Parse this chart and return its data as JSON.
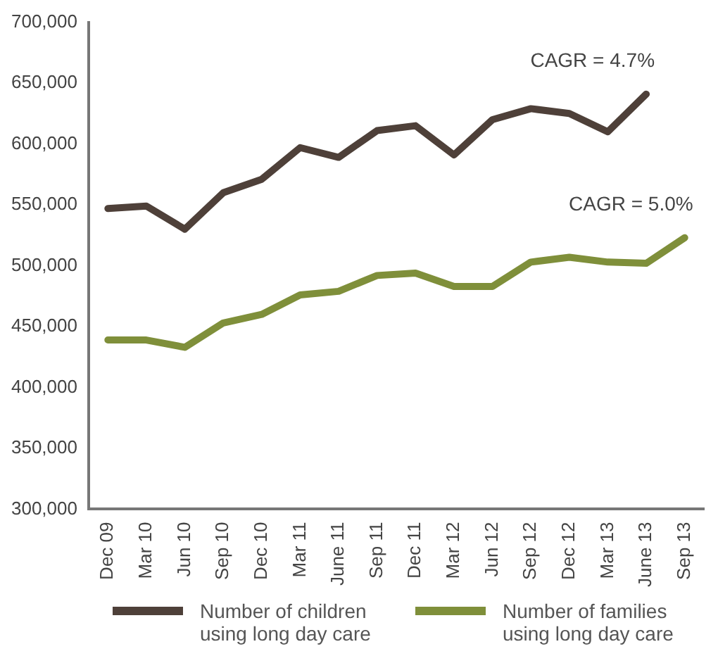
{
  "chart_data": {
    "type": "line",
    "categories": [
      "Dec 09",
      "Mar 10",
      "Jun 10",
      "Sep 10",
      "Dec 10",
      "Mar 11",
      "June 11",
      "Sep 11",
      "Dec 11",
      "Mar 12",
      "Jun 12",
      "Sep 12",
      "Dec 12",
      "Mar 13",
      "June 13",
      "Sep 13"
    ],
    "series": [
      {
        "name": "Number of children using long day care",
        "color": "#4e4039",
        "values": [
          547000,
          549000,
          530000,
          560000,
          571000,
          597000,
          589000,
          611000,
          615000,
          591000,
          620000,
          629000,
          625000,
          610000,
          641000,
          null
        ]
      },
      {
        "name": "Number of families using long day care",
        "color": "#7f8f3a",
        "values": [
          439000,
          439000,
          433000,
          453000,
          460000,
          476000,
          479000,
          492000,
          494000,
          483000,
          483000,
          503000,
          507000,
          503000,
          502000,
          523000
        ]
      }
    ],
    "ylim": [
      300000,
      700000
    ],
    "yticks": [
      {
        "value": 300000,
        "label": "300,000"
      },
      {
        "value": 350000,
        "label": "350,000"
      },
      {
        "value": 400000,
        "label": "400,000"
      },
      {
        "value": 450000,
        "label": "450,000"
      },
      {
        "value": 500000,
        "label": "500,000"
      },
      {
        "value": 550000,
        "label": "550,000"
      },
      {
        "value": 600000,
        "label": "600,000"
      },
      {
        "value": 650000,
        "label": "650,000"
      },
      {
        "value": 700000,
        "label": "700,000"
      }
    ],
    "annotations": [
      "CAGR = 4.7%",
      "CAGR = 5.0%"
    ],
    "grid": false,
    "legend": "bottom",
    "marker": "none",
    "line_style": "solid"
  }
}
